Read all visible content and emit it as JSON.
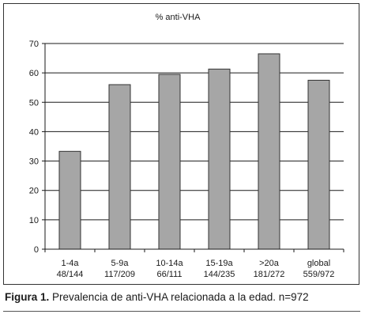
{
  "chart_data": {
    "type": "bar",
    "title": "% anti-VHA",
    "categories": [
      "1-4a",
      "5-9a",
      "10-14a",
      "15-19a",
      ">20a",
      "global"
    ],
    "sublabels": [
      "48/144",
      "117/209",
      "66/111",
      "144/235",
      "181/272",
      "559/972"
    ],
    "values": [
      33.3,
      56,
      59.5,
      61.3,
      66.5,
      57.5
    ],
    "ylim": [
      0,
      70
    ],
    "yticks": [
      0,
      10,
      20,
      30,
      40,
      50,
      60,
      70
    ],
    "grid": true,
    "colors": {
      "bar": "#a6a6a6",
      "bar_stroke": "#333333",
      "grid": "#1a1a1a"
    }
  },
  "caption": {
    "label": "Figura 1.",
    "text": "Prevalencia de anti-VHA relacionada a la edad. n=972"
  }
}
